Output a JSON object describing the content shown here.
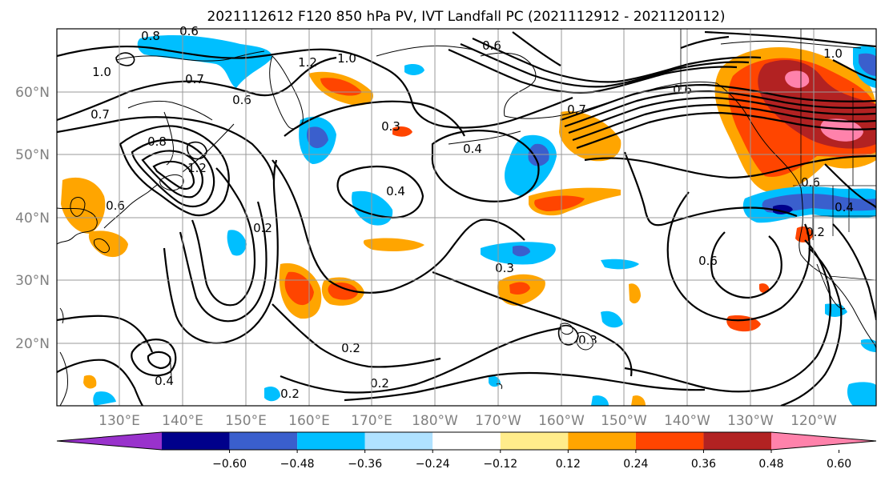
{
  "title": "2021112612 F120 850 hPa PV, IVT Landfall PC (2021112912 - 2021120112)",
  "lat_labels": [
    "60°N",
    "50°N",
    "40°N",
    "30°N",
    "20°N"
  ],
  "lon_labels": [
    "130°E",
    "140°E",
    "150°E",
    "160°E",
    "170°E",
    "180°W",
    "170°W",
    "160°W",
    "150°W",
    "140°W",
    "130°W",
    "120°W"
  ],
  "colorbar": {
    "ticks": [
      "−0.60",
      "−0.48",
      "−0.36",
      "−0.24",
      "−0.12",
      "0.12",
      "0.24",
      "0.36",
      "0.48",
      "0.60"
    ],
    "colors": [
      "#9932cc",
      "#00008b",
      "#3a5fcd",
      "#00bfff",
      "#b0e2ff",
      "#ffffff",
      "#ffec8b",
      "#ffa500",
      "#ff4500",
      "#b22222",
      "#ff82ab"
    ]
  },
  "contour_labels": [
    "0.8",
    "0.6",
    "1.0",
    "0.7",
    "1.2",
    "1.0",
    "0.6",
    "0.7",
    "0.8",
    "1.2",
    "0.3",
    "0.4",
    "0.4",
    "0.6",
    "0.7",
    "0.6",
    "1.0",
    "0.6",
    "0.6",
    "0.4",
    "0.2",
    "0.3",
    "0.6",
    "0.2",
    "0.2",
    "0.4",
    "0.2",
    "0.2",
    "0.3"
  ]
}
